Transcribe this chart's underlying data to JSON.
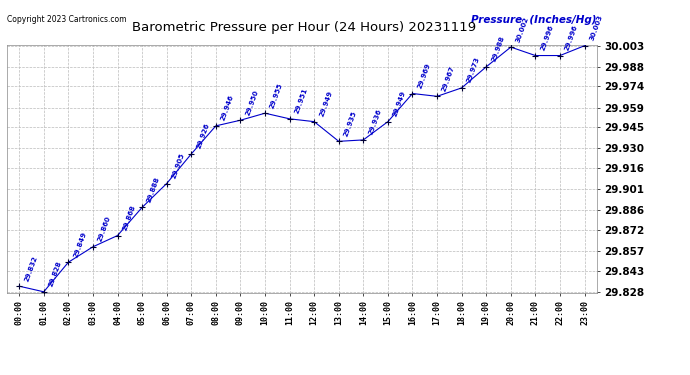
{
  "title": "Barometric Pressure per Hour (24 Hours) 20231119",
  "copyright": "Copyright 2023 Cartronics.com",
  "legend_label": "Pressure  (Inches/Hg)",
  "hours": [
    "00:00",
    "01:00",
    "02:00",
    "03:00",
    "04:00",
    "05:00",
    "06:00",
    "07:00",
    "08:00",
    "09:00",
    "10:00",
    "11:00",
    "12:00",
    "13:00",
    "14:00",
    "15:00",
    "16:00",
    "17:00",
    "18:00",
    "19:00",
    "20:00",
    "21:00",
    "22:00",
    "23:00"
  ],
  "values": [
    29.832,
    29.828,
    29.849,
    29.86,
    29.868,
    29.888,
    29.905,
    29.926,
    29.946,
    29.95,
    29.955,
    29.951,
    29.949,
    29.935,
    29.936,
    29.949,
    29.969,
    29.967,
    29.973,
    29.988,
    30.002,
    29.996,
    29.996,
    30.003
  ],
  "ylim_min": 29.828,
  "ylim_max": 30.003,
  "yticks": [
    29.828,
    29.843,
    29.857,
    29.872,
    29.886,
    29.901,
    29.916,
    29.93,
    29.945,
    29.959,
    29.974,
    29.988,
    30.003
  ],
  "line_color": "#0000cc",
  "marker_color": "#000033",
  "grid_color": "#bbbbbb",
  "bg_color": "#ffffff",
  "title_color": "#000000",
  "label_color": "#0000cc",
  "copyright_color": "#000000",
  "legend_color": "#0000cc",
  "yticklabel_color": "#000000"
}
